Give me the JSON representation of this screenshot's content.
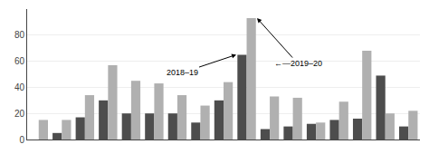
{
  "chart_data": {
    "type": "bar",
    "categories": [
      null,
      null,
      null,
      null,
      null,
      null,
      null,
      null,
      null,
      null,
      null,
      null,
      null,
      null,
      null,
      null,
      null
    ],
    "series": [
      {
        "color": "#4d4d4d",
        "values": [
          0,
          5,
          17,
          30,
          20,
          20,
          20,
          13,
          30,
          65,
          8,
          10,
          12,
          15,
          16,
          49,
          10
        ]
      },
      {
        "color": "#b0b0b0",
        "values": [
          15,
          15,
          34,
          57,
          45,
          43,
          34,
          26,
          44,
          93,
          33,
          32,
          13,
          29,
          68,
          20,
          22
        ]
      }
    ],
    "ylim": [
      0,
      100
    ],
    "yticks": [
      0,
      20,
      40,
      60,
      80
    ],
    "grid": true,
    "tick_labels": "y",
    "annotations": [
      {
        "text": "2018–19",
        "category": 9,
        "series": 0
      },
      {
        "text": "←—2019–20",
        "category": 9,
        "series": 1
      }
    ]
  }
}
